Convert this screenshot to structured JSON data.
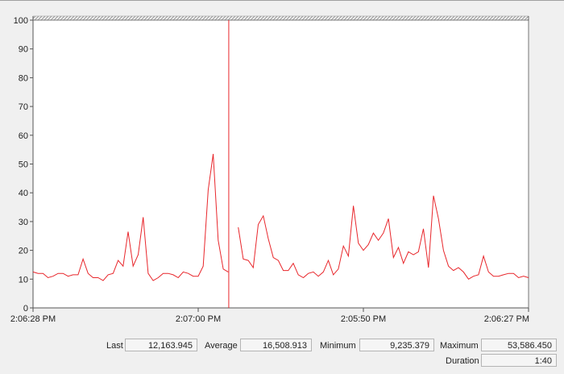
{
  "chart_data": {
    "type": "line",
    "y_ticks": [
      "0",
      "10",
      "20",
      "30",
      "40",
      "50",
      "60",
      "70",
      "80",
      "90",
      "100"
    ],
    "ylim": [
      0,
      100
    ],
    "x_tick_labels": [
      "2:06:28 PM",
      "2:07:00 PM",
      "2:05:50 PM",
      "2:06:27 PM"
    ],
    "duration_seconds": 100,
    "cursor_position_fraction": 0.395,
    "grid": false,
    "colors": {
      "line": "#e8262b",
      "cursor": "#e8262b"
    },
    "series": [
      {
        "values": [
          12.5,
          12,
          12,
          10.5,
          11,
          12,
          12,
          11,
          11.5,
          11.5,
          17,
          12,
          10.5,
          10.5,
          9.5,
          11.5,
          12,
          16.5,
          14.5,
          26.5,
          14.5,
          18.5,
          31.5,
          12,
          9.5,
          10.5,
          12,
          12,
          11.5,
          10.5,
          12.5,
          12,
          11,
          11,
          14.5,
          41,
          53.5,
          23.5,
          13.5,
          12.5,
          null,
          28,
          17,
          16.5,
          14,
          29,
          32,
          24,
          17.5,
          16.5,
          13,
          13,
          15.5,
          11.5,
          10.5,
          12,
          12.5,
          11,
          12.5,
          16.5,
          11.5,
          13.5,
          21.5,
          18,
          35.5,
          22.5,
          20,
          22,
          26,
          23.5,
          26,
          31,
          17.5,
          21,
          15.5,
          19.5,
          18.5,
          19.5,
          27.5,
          14,
          39,
          31,
          20,
          14.5,
          13,
          14,
          12.5,
          10,
          11,
          11.5,
          18,
          12.5,
          11,
          11,
          11.5,
          12,
          12,
          10.5,
          11,
          10.5
        ]
      }
    ]
  },
  "stats": {
    "last_label": "Last",
    "last_value": "12,163.945",
    "average_label": "Average",
    "average_value": "16,508.913",
    "minimum_label": "Minimum",
    "minimum_value": "9,235.379",
    "maximum_label": "Maximum",
    "maximum_value": "53,586.450",
    "duration_label": "Duration",
    "duration_value": "1:40"
  }
}
